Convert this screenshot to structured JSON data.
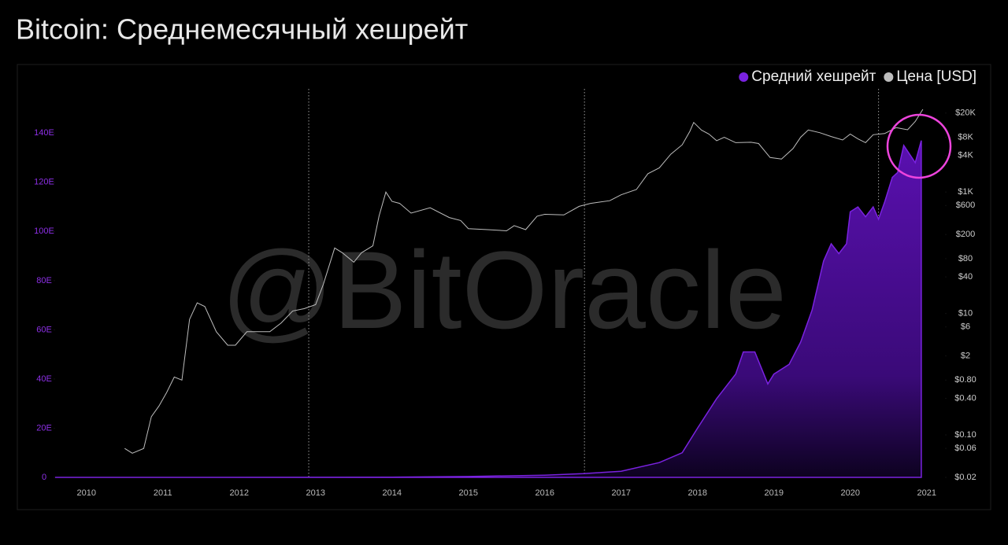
{
  "chart_data": {
    "type": "area-line",
    "title": "Bitcoin: Среднемесячный хешрейт",
    "watermark": "@BitOracle",
    "legend": "top-right",
    "xlim": [
      2009.59,
      2021.24
    ],
    "xticks": [
      2010,
      2011,
      2012,
      2013,
      2014,
      2015,
      2016,
      2017,
      2018,
      2019,
      2020,
      2021
    ],
    "vlines": [
      2012.91,
      2016.52,
      2020.37
    ],
    "ylim": [
      0,
      158
    ],
    "yticks": [
      0,
      {
        "value": 20,
        "label": "20E"
      },
      {
        "value": 40,
        "label": "40E"
      },
      {
        "value": 60,
        "label": "60E"
      },
      {
        "value": 80,
        "label": "80E"
      },
      {
        "value": 100,
        "label": "100E"
      },
      {
        "value": 120,
        "label": "120E"
      },
      {
        "value": 140,
        "label": "140E"
      }
    ],
    "y2log": true,
    "y2lim": [
      0.02,
      50000
    ],
    "y2ticks": [
      {
        "value": 0.02,
        "label": "$0.02"
      },
      {
        "value": 0.06,
        "label": "$0.06"
      },
      {
        "value": 0.1,
        "label": "$0.10"
      },
      {
        "value": 0.4,
        "label": "$0.40"
      },
      {
        "value": 0.8,
        "label": "$0.80"
      },
      {
        "value": 2,
        "label": "$2"
      },
      {
        "value": 6,
        "label": "$6"
      },
      {
        "value": 10,
        "label": "$10"
      },
      {
        "value": 40,
        "label": "$40"
      },
      {
        "value": 80,
        "label": "$80"
      },
      {
        "value": 200,
        "label": "$200"
      },
      {
        "value": 600,
        "label": "$600"
      },
      {
        "value": 1000,
        "label": "$1K"
      },
      {
        "value": 4000,
        "label": "$4K"
      },
      {
        "value": 8000,
        "label": "$8K"
      },
      {
        "value": 20000,
        "label": "$20K"
      }
    ],
    "series": [
      {
        "name": "Средний хешрейт",
        "color": "#7a22e0",
        "axis": "y",
        "x": [
          2009.59,
          2011,
          2013,
          2014,
          2015,
          2016,
          2016.5,
          2017,
          2017.5,
          2017.8,
          2018,
          2018.25,
          2018.5,
          2018.6,
          2018.75,
          2018.92,
          2019.0,
          2019.2,
          2019.35,
          2019.5,
          2019.65,
          2019.75,
          2019.85,
          2019.95,
          2020.0,
          2020.1,
          2020.2,
          2020.3,
          2020.37,
          2020.45,
          2020.55,
          2020.62,
          2020.7,
          2020.85,
          2020.93
        ],
        "values": [
          0,
          0.01,
          0.02,
          0.1,
          0.35,
          0.9,
          1.5,
          2.5,
          6,
          10,
          20,
          32,
          42,
          51,
          51,
          38,
          42,
          46,
          55,
          68,
          88,
          95,
          91,
          95,
          108,
          110,
          106,
          110,
          105,
          112,
          122,
          124,
          135,
          128,
          137
        ]
      },
      {
        "name": "Цена [USD]",
        "color": "#bdbdbd",
        "axis": "y2",
        "x": [
          2010.5,
          2010.6,
          2010.75,
          2010.85,
          2010.95,
          2011.05,
          2011.15,
          2011.25,
          2011.35,
          2011.45,
          2011.55,
          2011.7,
          2011.85,
          2011.95,
          2012.1,
          2012.25,
          2012.4,
          2012.55,
          2012.7,
          2012.85,
          2013.0,
          2013.1,
          2013.25,
          2013.35,
          2013.5,
          2013.6,
          2013.75,
          2013.83,
          2013.92,
          2014.0,
          2014.1,
          2014.25,
          2014.5,
          2014.75,
          2014.9,
          2015.0,
          2015.25,
          2015.5,
          2015.6,
          2015.75,
          2015.9,
          2016.0,
          2016.25,
          2016.45,
          2016.6,
          2016.85,
          2017.0,
          2017.2,
          2017.35,
          2017.5,
          2017.65,
          2017.8,
          2017.9,
          2017.95,
          2018.05,
          2018.15,
          2018.25,
          2018.35,
          2018.5,
          2018.7,
          2018.8,
          2018.95,
          2019.1,
          2019.25,
          2019.35,
          2019.45,
          2019.6,
          2019.75,
          2019.9,
          2020.0,
          2020.1,
          2020.2,
          2020.3,
          2020.45,
          2020.6,
          2020.75,
          2020.85,
          2020.95
        ],
        "values": [
          0.06,
          0.05,
          0.06,
          0.2,
          0.3,
          0.5,
          0.9,
          0.8,
          8,
          15,
          13,
          5,
          3,
          3,
          5,
          5,
          5,
          7,
          11,
          12,
          14,
          30,
          120,
          100,
          70,
          100,
          130,
          400,
          1000,
          700,
          650,
          450,
          550,
          380,
          340,
          250,
          240,
          230,
          280,
          240,
          400,
          430,
          420,
          580,
          650,
          720,
          900,
          1100,
          2000,
          2500,
          4200,
          6000,
          10000,
          14000,
          10500,
          9000,
          7000,
          8000,
          6500,
          6600,
          6300,
          3700,
          3500,
          5200,
          8000,
          10500,
          9500,
          8200,
          7200,
          9000,
          7500,
          6500,
          8800,
          9200,
          11500,
          10600,
          14500,
          23000
        ]
      }
    ]
  }
}
